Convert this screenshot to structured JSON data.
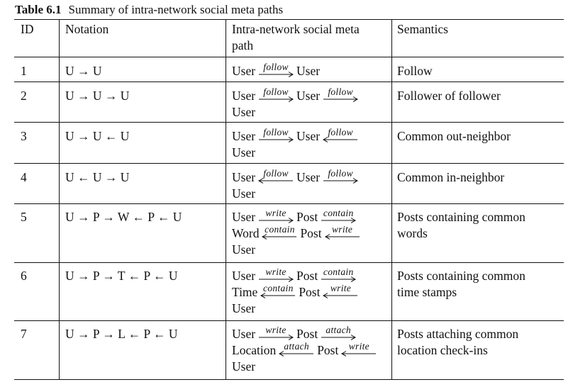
{
  "caption": {
    "label": "Table 6.1",
    "title": "Summary of intra-network social meta paths"
  },
  "headers": {
    "id": "ID",
    "notation": "Notation",
    "path": "Intra-network social meta path",
    "path_line1": "Intra-network social meta",
    "path_line2": "path",
    "semantics": "Semantics"
  },
  "rows": [
    {
      "id": "1",
      "notation": "U → U",
      "path": [
        [
          "User",
          {
            "label": "follow",
            "dir": "right"
          },
          "User"
        ]
      ],
      "semantics": [
        "Follow"
      ]
    },
    {
      "id": "2",
      "notation": "U → U → U",
      "path": [
        [
          "User",
          {
            "label": "follow",
            "dir": "right"
          },
          "User",
          {
            "label": "follow",
            "dir": "right"
          }
        ],
        [
          "User"
        ]
      ],
      "semantics": [
        "Follower of follower"
      ]
    },
    {
      "id": "3",
      "notation": "U → U ← U",
      "path": [
        [
          "User",
          {
            "label": "follow",
            "dir": "right"
          },
          "User",
          {
            "label": "follow",
            "dir": "left"
          }
        ],
        [
          "User"
        ]
      ],
      "semantics": [
        "Common out-neighbor"
      ]
    },
    {
      "id": "4",
      "notation": "U ← U → U",
      "path": [
        [
          "User",
          {
            "label": "follow",
            "dir": "left"
          },
          "User",
          {
            "label": "follow",
            "dir": "right"
          }
        ],
        [
          "User"
        ]
      ],
      "semantics": [
        "Common in-neighbor"
      ]
    },
    {
      "id": "5",
      "notation": "U → P → W ← P ← U",
      "path": [
        [
          "User",
          {
            "label": "write",
            "dir": "right"
          },
          "Post",
          {
            "label": "contain",
            "dir": "right"
          }
        ],
        [
          "Word",
          {
            "label": "contain",
            "dir": "left"
          },
          "Post",
          {
            "label": "write",
            "dir": "left"
          }
        ],
        [
          "User"
        ]
      ],
      "semantics": [
        "Posts containing common",
        "words"
      ]
    },
    {
      "id": "6",
      "notation": "U → P → T ← P ← U",
      "path": [
        [
          "User",
          {
            "label": "write",
            "dir": "right"
          },
          "Post",
          {
            "label": "contain",
            "dir": "right"
          }
        ],
        [
          "Time",
          {
            "label": "contain",
            "dir": "left"
          },
          "Post",
          {
            "label": "write",
            "dir": "left"
          }
        ],
        [
          "User"
        ]
      ],
      "semantics": [
        "Posts containing common",
        "time stamps"
      ]
    },
    {
      "id": "7",
      "notation": "U → P → L ← P ← U",
      "path": [
        [
          "User",
          {
            "label": "write",
            "dir": "right"
          },
          "Post",
          {
            "label": "attach",
            "dir": "right"
          }
        ],
        [
          "Location",
          {
            "label": "attach",
            "dir": "left"
          },
          "Post",
          {
            "label": "write",
            "dir": "left"
          }
        ],
        [
          "User"
        ]
      ],
      "semantics": [
        "Posts attaching common",
        "location check-ins"
      ]
    }
  ]
}
